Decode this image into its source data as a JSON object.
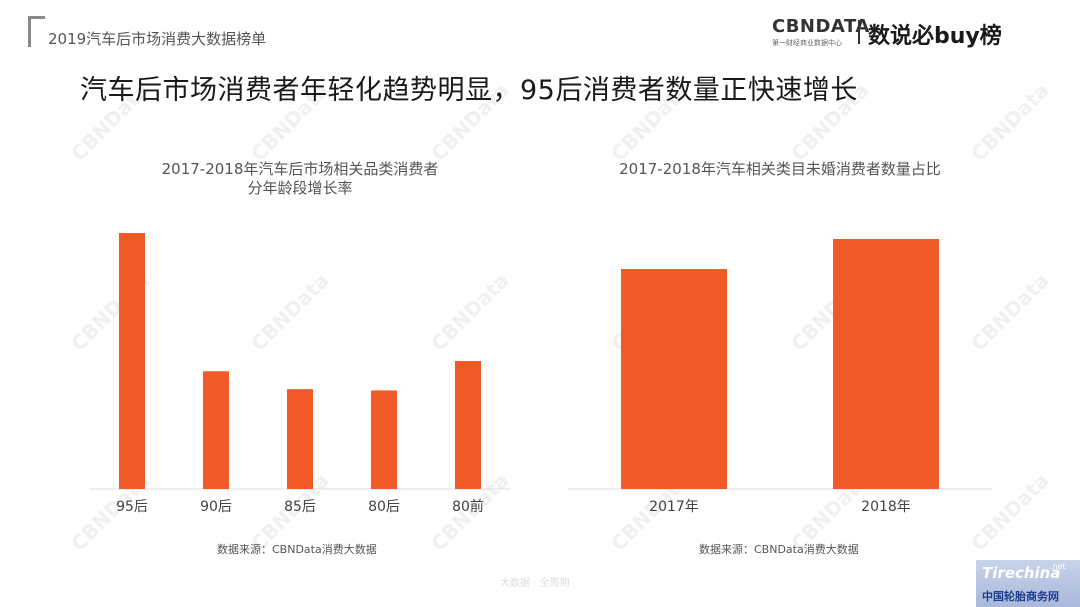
{
  "header": {
    "report_title": "2019汽车后市场消费大数据榜单",
    "cbn_logo": "CBNDATA",
    "cbn_subtitle": "第一财经商业数据中心",
    "buy_logo": "数说必buy榜"
  },
  "main_title": "汽车后市场消费者年轻化趋势明显，95后消费者数量正快速增长",
  "watermark_text": "CBNData",
  "chart_data": [
    {
      "type": "bar",
      "title": "2017-2018年汽车后市场相关品类消费者",
      "subtitle": "分年龄段增长率",
      "categories": [
        "95后",
        "90后",
        "85后",
        "80后",
        "80前"
      ],
      "values": [
        100,
        46,
        39,
        38.5,
        50
      ],
      "ylim": [
        0,
        100
      ],
      "grid": false,
      "color": "#f05a28",
      "source": "数据来源：CBNData消费大数据"
    },
    {
      "type": "bar",
      "title": "2017-2018年汽车相关类目未婚消费者数量占比",
      "categories": [
        "2017年",
        "2018年"
      ],
      "values": [
        88,
        100
      ],
      "ylim": [
        0,
        100
      ],
      "grid": false,
      "color": "#f05a28",
      "source": "数据来源：CBNData消费大数据"
    }
  ],
  "footer": {
    "text": "大数据 · 全周期",
    "site_logo": "Tirechina",
    "site_suffix": ".net",
    "site_name": "中国轮胎商务网"
  }
}
